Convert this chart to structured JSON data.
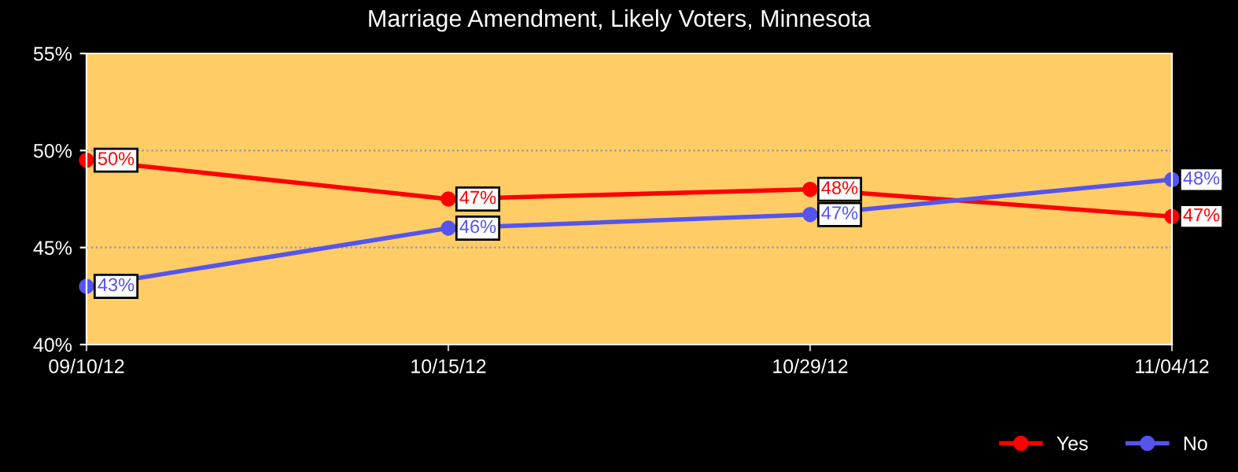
{
  "chart_data": {
    "type": "line",
    "title": "Marriage Amendment, Likely Voters, Minnesota",
    "categories": [
      "09/10/12",
      "10/15/12",
      "10/29/12",
      "11/04/12"
    ],
    "series": [
      {
        "name": "Yes",
        "color": "#ff0000",
        "values": [
          49.5,
          47.5,
          48.0,
          46.6
        ],
        "value_labels": [
          "50%",
          "47%",
          "48%",
          "47%"
        ]
      },
      {
        "name": "No",
        "color": "#5555ee",
        "values": [
          43.0,
          46.0,
          46.7,
          48.5
        ],
        "value_labels": [
          "43%",
          "46%",
          "47%",
          "48%"
        ]
      }
    ],
    "ylim": [
      40,
      55
    ],
    "yticks": [
      {
        "value": 40,
        "label": "40%"
      },
      {
        "value": 45,
        "label": "45%"
      },
      {
        "value": 50,
        "label": "50%"
      },
      {
        "value": 55,
        "label": "55%"
      }
    ],
    "grid": "y",
    "legend": "bottom right",
    "marker": "circle",
    "line_style": "solid"
  }
}
